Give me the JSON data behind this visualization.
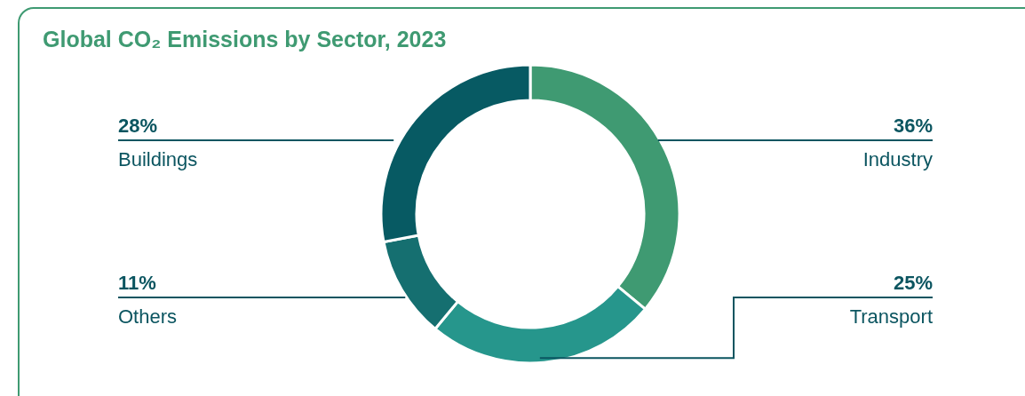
{
  "chart_data": {
    "type": "donut",
    "title": "Global CO₂ Emissions by Sector, 2023",
    "categories": [
      "Industry",
      "Transport",
      "Others",
      "Buildings"
    ],
    "values": [
      36,
      25,
      11,
      28
    ],
    "colors": [
      "#3f9a72",
      "#26968c",
      "#156f70",
      "#075a63"
    ],
    "value_labels": [
      "36%",
      "25%",
      "11%",
      "28%"
    ]
  }
}
